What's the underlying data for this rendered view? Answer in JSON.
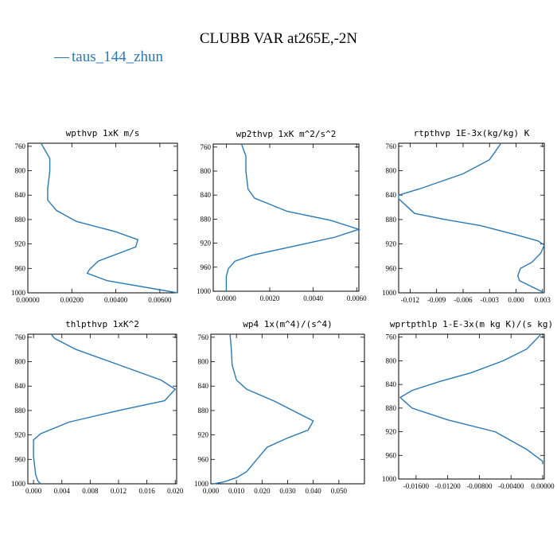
{
  "figure": {
    "title": "CLUBB VAR at265E,-2N",
    "legend": {
      "line_symbol": "—",
      "label": "taus_144_zhun",
      "color": "#2a78b4"
    }
  },
  "chart_data": [
    {
      "type": "line",
      "title": "wpthvp  1xK m/s",
      "series": [
        {
          "name": "taus_144_zhun",
          "x": [
            0.0006,
            0.001,
            0.001,
            0.0009,
            0.0009,
            0.0013,
            0.0022,
            0.004,
            0.005,
            0.0049,
            0.0032,
            0.0028,
            0.0027,
            0.0036,
            0.0068
          ],
          "y": [
            755,
            780,
            800,
            830,
            848,
            865,
            883,
            900,
            913,
            925,
            948,
            962,
            968,
            980,
            1000
          ]
        }
      ],
      "xlim": [
        0.0,
        0.0068
      ],
      "ylim": [
        1000,
        755
      ],
      "xticks": [
        0.0,
        0.002,
        0.004,
        0.006
      ],
      "xtick_labels": [
        "0.00000",
        "0.00200",
        "0.00400",
        "0.00600"
      ],
      "yticks": [
        760,
        800,
        840,
        880,
        920,
        960,
        1000
      ],
      "ytick_labels": [
        "760",
        "800",
        "840",
        "880",
        "920",
        "960",
        "1000"
      ]
    },
    {
      "type": "line",
      "title": "wp2thvp  1xK m^2/s^2",
      "series": [
        {
          "name": "taus_144_zhun",
          "x": [
            0.0007,
            0.0009,
            0.0009,
            0.001,
            0.0013,
            0.0028,
            0.0048,
            0.0061,
            0.005,
            0.003,
            0.0012,
            0.0004,
            0.0001,
            0.0,
            0.0,
            0.0
          ],
          "y": [
            755,
            775,
            800,
            830,
            845,
            867,
            882,
            897,
            910,
            926,
            940,
            950,
            962,
            975,
            990,
            1000
          ]
        }
      ],
      "xlim": [
        -0.0006,
        0.0061
      ],
      "ylim": [
        1000,
        755
      ],
      "xticks": [
        0.0,
        0.002,
        0.004,
        0.006
      ],
      "xtick_labels": [
        "0.0000",
        "0.0020",
        "0.0040",
        "0.0060"
      ],
      "yticks": [
        760,
        800,
        840,
        880,
        920,
        960,
        1000
      ],
      "ytick_labels": [
        "760",
        "800",
        "840",
        "880",
        "920",
        "960",
        "1000"
      ]
    },
    {
      "type": "line",
      "title": "rtpthvp  1E-3x(kg/kg) K",
      "series": [
        {
          "name": "taus_144_zhun",
          "x": [
            -0.0017,
            -0.003,
            -0.006,
            -0.011,
            -0.0133,
            -0.0133,
            -0.0115,
            -0.008,
            -0.004,
            0.0,
            0.0025,
            0.0032,
            0.0028,
            0.0018,
            0.0005,
            0.0002,
            0.0004,
            0.0032
          ],
          "y": [
            755,
            782,
            805,
            830,
            840,
            846,
            870,
            880,
            890,
            905,
            915,
            922,
            935,
            950,
            960,
            972,
            980,
            1000
          ]
        }
      ],
      "xlim": [
        -0.0133,
        0.0032
      ],
      "ylim": [
        1000,
        755
      ],
      "xticks": [
        -0.012,
        -0.009,
        -0.006,
        -0.003,
        0.0,
        0.003
      ],
      "xtick_labels": [
        "-0.012",
        "-0.009",
        "-0.006",
        "-0.003",
        "0.000",
        "0.003"
      ],
      "yticks": [
        760,
        800,
        840,
        880,
        920,
        960,
        1000
      ],
      "ytick_labels": [
        "760",
        "800",
        "840",
        "880",
        "920",
        "960",
        "1000"
      ]
    },
    {
      "type": "line",
      "title": "thlpthvp  1xK^2",
      "series": [
        {
          "name": "taus_144_zhun",
          "x": [
            0.0025,
            0.003,
            0.006,
            0.012,
            0.018,
            0.02,
            0.0185,
            0.012,
            0.005,
            0.001,
            0.0,
            0.0,
            0.0003,
            0.0006,
            0.001
          ],
          "y": [
            755,
            762,
            780,
            805,
            830,
            845,
            864,
            880,
            899,
            918,
            928,
            955,
            985,
            995,
            1000
          ]
        }
      ],
      "xlim": [
        -0.0008,
        0.0202
      ],
      "ylim": [
        1000,
        755
      ],
      "xticks": [
        0.0,
        0.004,
        0.008,
        0.012,
        0.016,
        0.02
      ],
      "xtick_labels": [
        "0.000",
        "0.004",
        "0.008",
        "0.012",
        "0.016",
        "0.020"
      ],
      "yticks": [
        760,
        800,
        840,
        880,
        920,
        960,
        1000
      ],
      "ytick_labels": [
        "760",
        "800",
        "840",
        "880",
        "920",
        "960",
        "1000"
      ]
    },
    {
      "type": "line",
      "title": "wp4  1x(m^4)/(s^4)",
      "series": [
        {
          "name": "taus_144_zhun",
          "x": [
            0.0075,
            0.008,
            0.0083,
            0.01,
            0.014,
            0.025,
            0.033,
            0.04,
            0.038,
            0.03,
            0.022,
            0.02,
            0.017,
            0.014,
            0.01,
            0.005,
            0.001
          ],
          "y": [
            755,
            780,
            805,
            830,
            845,
            865,
            882,
            897,
            912,
            925,
            940,
            950,
            965,
            980,
            990,
            997,
            1000
          ]
        }
      ],
      "xlim": [
        0.0,
        0.06
      ],
      "ylim": [
        1000,
        755
      ],
      "xticks": [
        0.0,
        0.01,
        0.02,
        0.03,
        0.04,
        0.05
      ],
      "xtick_labels": [
        "0.000",
        "0.010",
        "0.020",
        "0.030",
        "0.040",
        "0.050"
      ],
      "yticks": [
        760,
        800,
        840,
        880,
        920,
        960,
        1000
      ],
      "ytick_labels": [
        "760",
        "800",
        "840",
        "880",
        "920",
        "960",
        "1000"
      ]
    },
    {
      "type": "line",
      "title": "wprtpthlp  1-E-3x(m kg K)/(s kg)",
      "series": [
        {
          "name": "taus_144_zhun",
          "x": [
            -0.0002,
            -0.002,
            -0.005,
            -0.009,
            -0.013,
            -0.0165,
            -0.018,
            -0.0165,
            -0.012,
            -0.006,
            -0.002,
            0.0,
            0.0
          ],
          "y": [
            755,
            780,
            800,
            820,
            835,
            850,
            862,
            880,
            900,
            920,
            950,
            970,
            975
          ]
        }
      ],
      "xlim": [
        -0.0182,
        0.0002
      ],
      "ylim": [
        1000,
        755
      ],
      "xticks": [
        -0.016,
        -0.012,
        -0.008,
        -0.004,
        0.0
      ],
      "xtick_labels": [
        "-0.01600",
        "-0.01200",
        "-0.00800",
        "-0.00400",
        "0.00000"
      ],
      "yticks": [
        760,
        800,
        840,
        880,
        920,
        960,
        1000
      ],
      "ytick_labels": [
        "760",
        "800",
        "840",
        "880",
        "920",
        "960",
        "1000"
      ]
    }
  ]
}
